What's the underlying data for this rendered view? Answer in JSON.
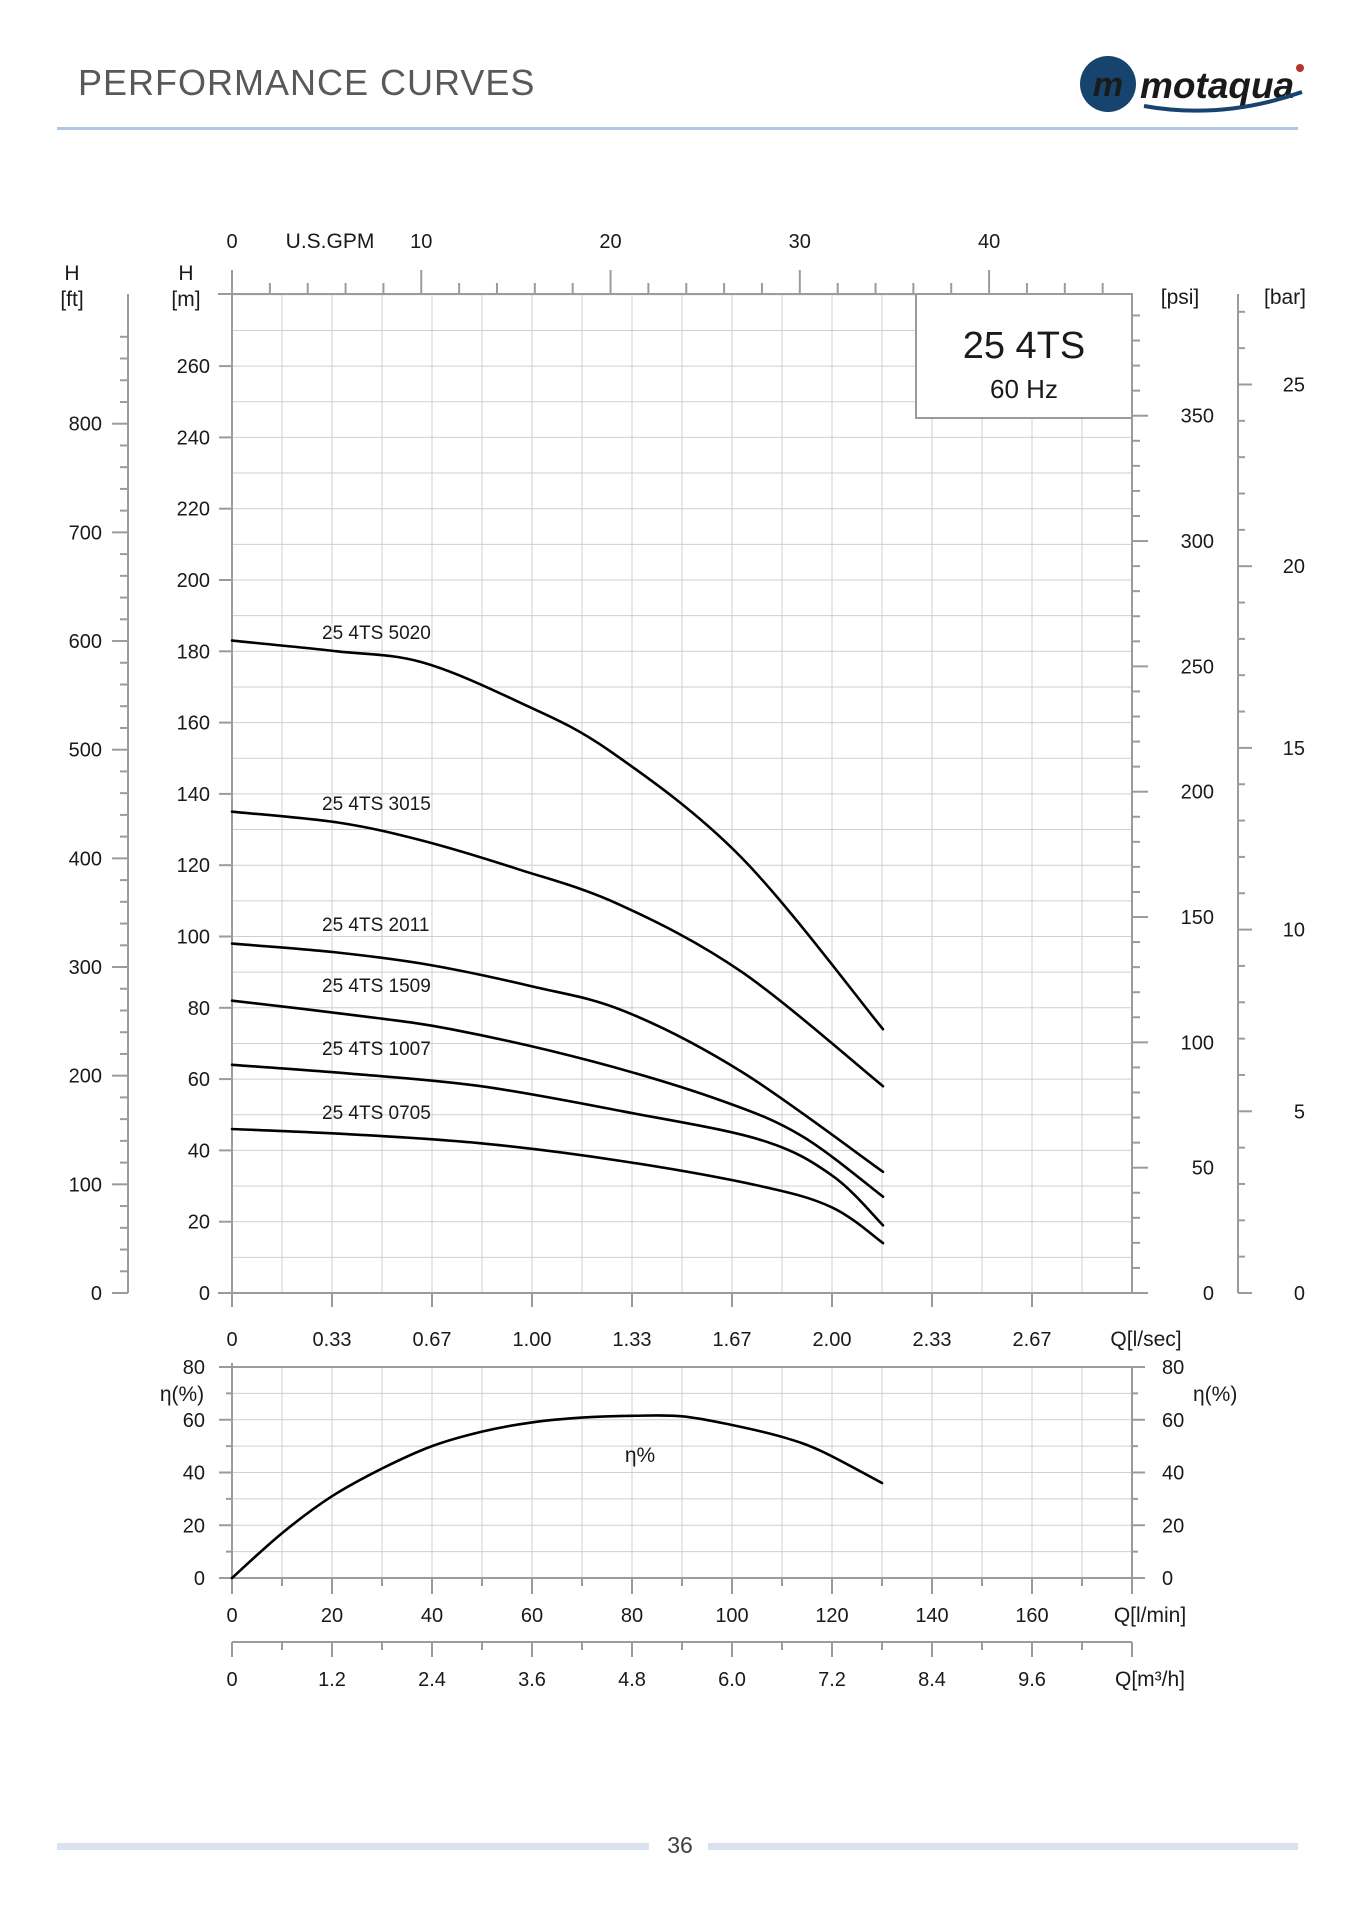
{
  "page": {
    "title": "PERFORMANCE CURVES",
    "page_number": "36"
  },
  "logo": {
    "brand": "motaqua",
    "monogram": "m",
    "brand_color": "#17446e",
    "dot_color": "#b5342c"
  },
  "chart_data": [
    {
      "id": "head_curves",
      "type": "line",
      "title": "25 4TS",
      "subtitle": "60 Hz",
      "x_units": "Q [l/sec]",
      "y_units": "H [m]",
      "xlim_lsec": [
        0,
        3.0
      ],
      "ylim_m": [
        0,
        280
      ],
      "grid": true,
      "axes": {
        "top": {
          "unit": "U.S.GPM",
          "ticks": [
            0,
            10,
            20,
            30,
            40
          ],
          "minor_step": 2
        },
        "left_ft": {
          "name": "H",
          "unit": "[ft]",
          "ticks": [
            0,
            100,
            200,
            300,
            400,
            500,
            600,
            700,
            800
          ],
          "minor_step": 20
        },
        "left_m": {
          "name": "H",
          "unit": "[m]",
          "ticks": [
            0,
            20,
            40,
            60,
            80,
            100,
            120,
            140,
            160,
            180,
            200,
            220,
            240,
            260
          ],
          "minor_step": 10
        },
        "right_psi": {
          "unit": "[psi]",
          "ticks": [
            0,
            50,
            100,
            150,
            200,
            250,
            300,
            350
          ],
          "minor_step": 10
        },
        "right_bar": {
          "unit": "[bar]",
          "ticks": [
            0,
            5,
            10,
            15,
            20,
            25
          ],
          "minor_step": 1
        },
        "bottom": {
          "unit": "Q[l/sec]",
          "tick_labels": [
            "0",
            "0.33",
            "0.67",
            "1.00",
            "1.33",
            "1.67",
            "2.00",
            "2.33",
            "2.67"
          ]
        }
      },
      "series": [
        {
          "name": "25 4TS 5020",
          "points": [
            [
              0,
              183
            ],
            [
              0.35,
              180
            ],
            [
              0.63,
              177
            ],
            [
              0.95,
              166
            ],
            [
              1.26,
              152
            ],
            [
              1.7,
              122
            ],
            [
              2.17,
              74
            ]
          ]
        },
        {
          "name": "25 4TS 3015",
          "points": [
            [
              0,
              135
            ],
            [
              0.35,
              132
            ],
            [
              0.63,
              127
            ],
            [
              0.95,
              119
            ],
            [
              1.29,
              109
            ],
            [
              1.7,
              90
            ],
            [
              2.17,
              58
            ]
          ]
        },
        {
          "name": "25 4TS 2011",
          "points": [
            [
              0,
              98
            ],
            [
              0.35,
              95.5
            ],
            [
              0.66,
              92
            ],
            [
              1.0,
              86
            ],
            [
              1.31,
              79
            ],
            [
              1.7,
              62
            ],
            [
              2.17,
              34
            ]
          ]
        },
        {
          "name": "25 4TS 1509",
          "points": [
            [
              0,
              82
            ],
            [
              0.4,
              78
            ],
            [
              0.73,
              74
            ],
            [
              1.2,
              65
            ],
            [
              1.63,
              54
            ],
            [
              1.9,
              44
            ],
            [
              2.17,
              27
            ]
          ]
        },
        {
          "name": "25 4TS 1007",
          "points": [
            [
              0,
              64
            ],
            [
              0.4,
              61.5
            ],
            [
              0.83,
              58
            ],
            [
              1.3,
              51
            ],
            [
              1.76,
              43
            ],
            [
              2.0,
              33
            ],
            [
              2.17,
              19
            ]
          ]
        },
        {
          "name": "25 4TS 0705",
          "points": [
            [
              0,
              46
            ],
            [
              0.4,
              44.5
            ],
            [
              0.83,
              42
            ],
            [
              1.3,
              37
            ],
            [
              1.76,
              30
            ],
            [
              2.0,
              24
            ],
            [
              2.17,
              14
            ]
          ]
        }
      ]
    },
    {
      "id": "efficiency",
      "type": "line",
      "curve_label": "η%",
      "x_units": "Q [l/min]",
      "y_units": "η (%)",
      "xlim_lmin": [
        0,
        180
      ],
      "ylim_pct": [
        0,
        80
      ],
      "grid": true,
      "axes": {
        "left": {
          "unit": "η(%)",
          "ticks": [
            0,
            20,
            40,
            60,
            80
          ],
          "minor_step": 10
        },
        "right": {
          "unit": "η(%)",
          "ticks": [
            0,
            20,
            40,
            60,
            80
          ],
          "minor_step": 10
        },
        "bottom_lmin": {
          "unit": "Q[l/min]",
          "ticks": [
            0,
            20,
            40,
            60,
            80,
            100,
            120,
            140,
            160
          ]
        },
        "bottom_m3h": {
          "unit": "Q[m³/h]",
          "tick_labels": [
            "0",
            "1.2",
            "2.4",
            "3.6",
            "4.8",
            "6.0",
            "7.2",
            "8.4",
            "9.6"
          ]
        }
      },
      "series": [
        {
          "name": "η%",
          "points": [
            [
              0,
              0
            ],
            [
              10,
              17
            ],
            [
              20,
              31
            ],
            [
              30,
              41.5
            ],
            [
              40,
              50
            ],
            [
              50,
              55.5
            ],
            [
              60,
              59
            ],
            [
              70,
              60.8
            ],
            [
              80,
              61.5
            ],
            [
              90,
              61.3
            ],
            [
              100,
              58
            ],
            [
              110,
              53.5
            ],
            [
              118,
              48
            ],
            [
              130,
              36
            ]
          ]
        }
      ]
    }
  ]
}
